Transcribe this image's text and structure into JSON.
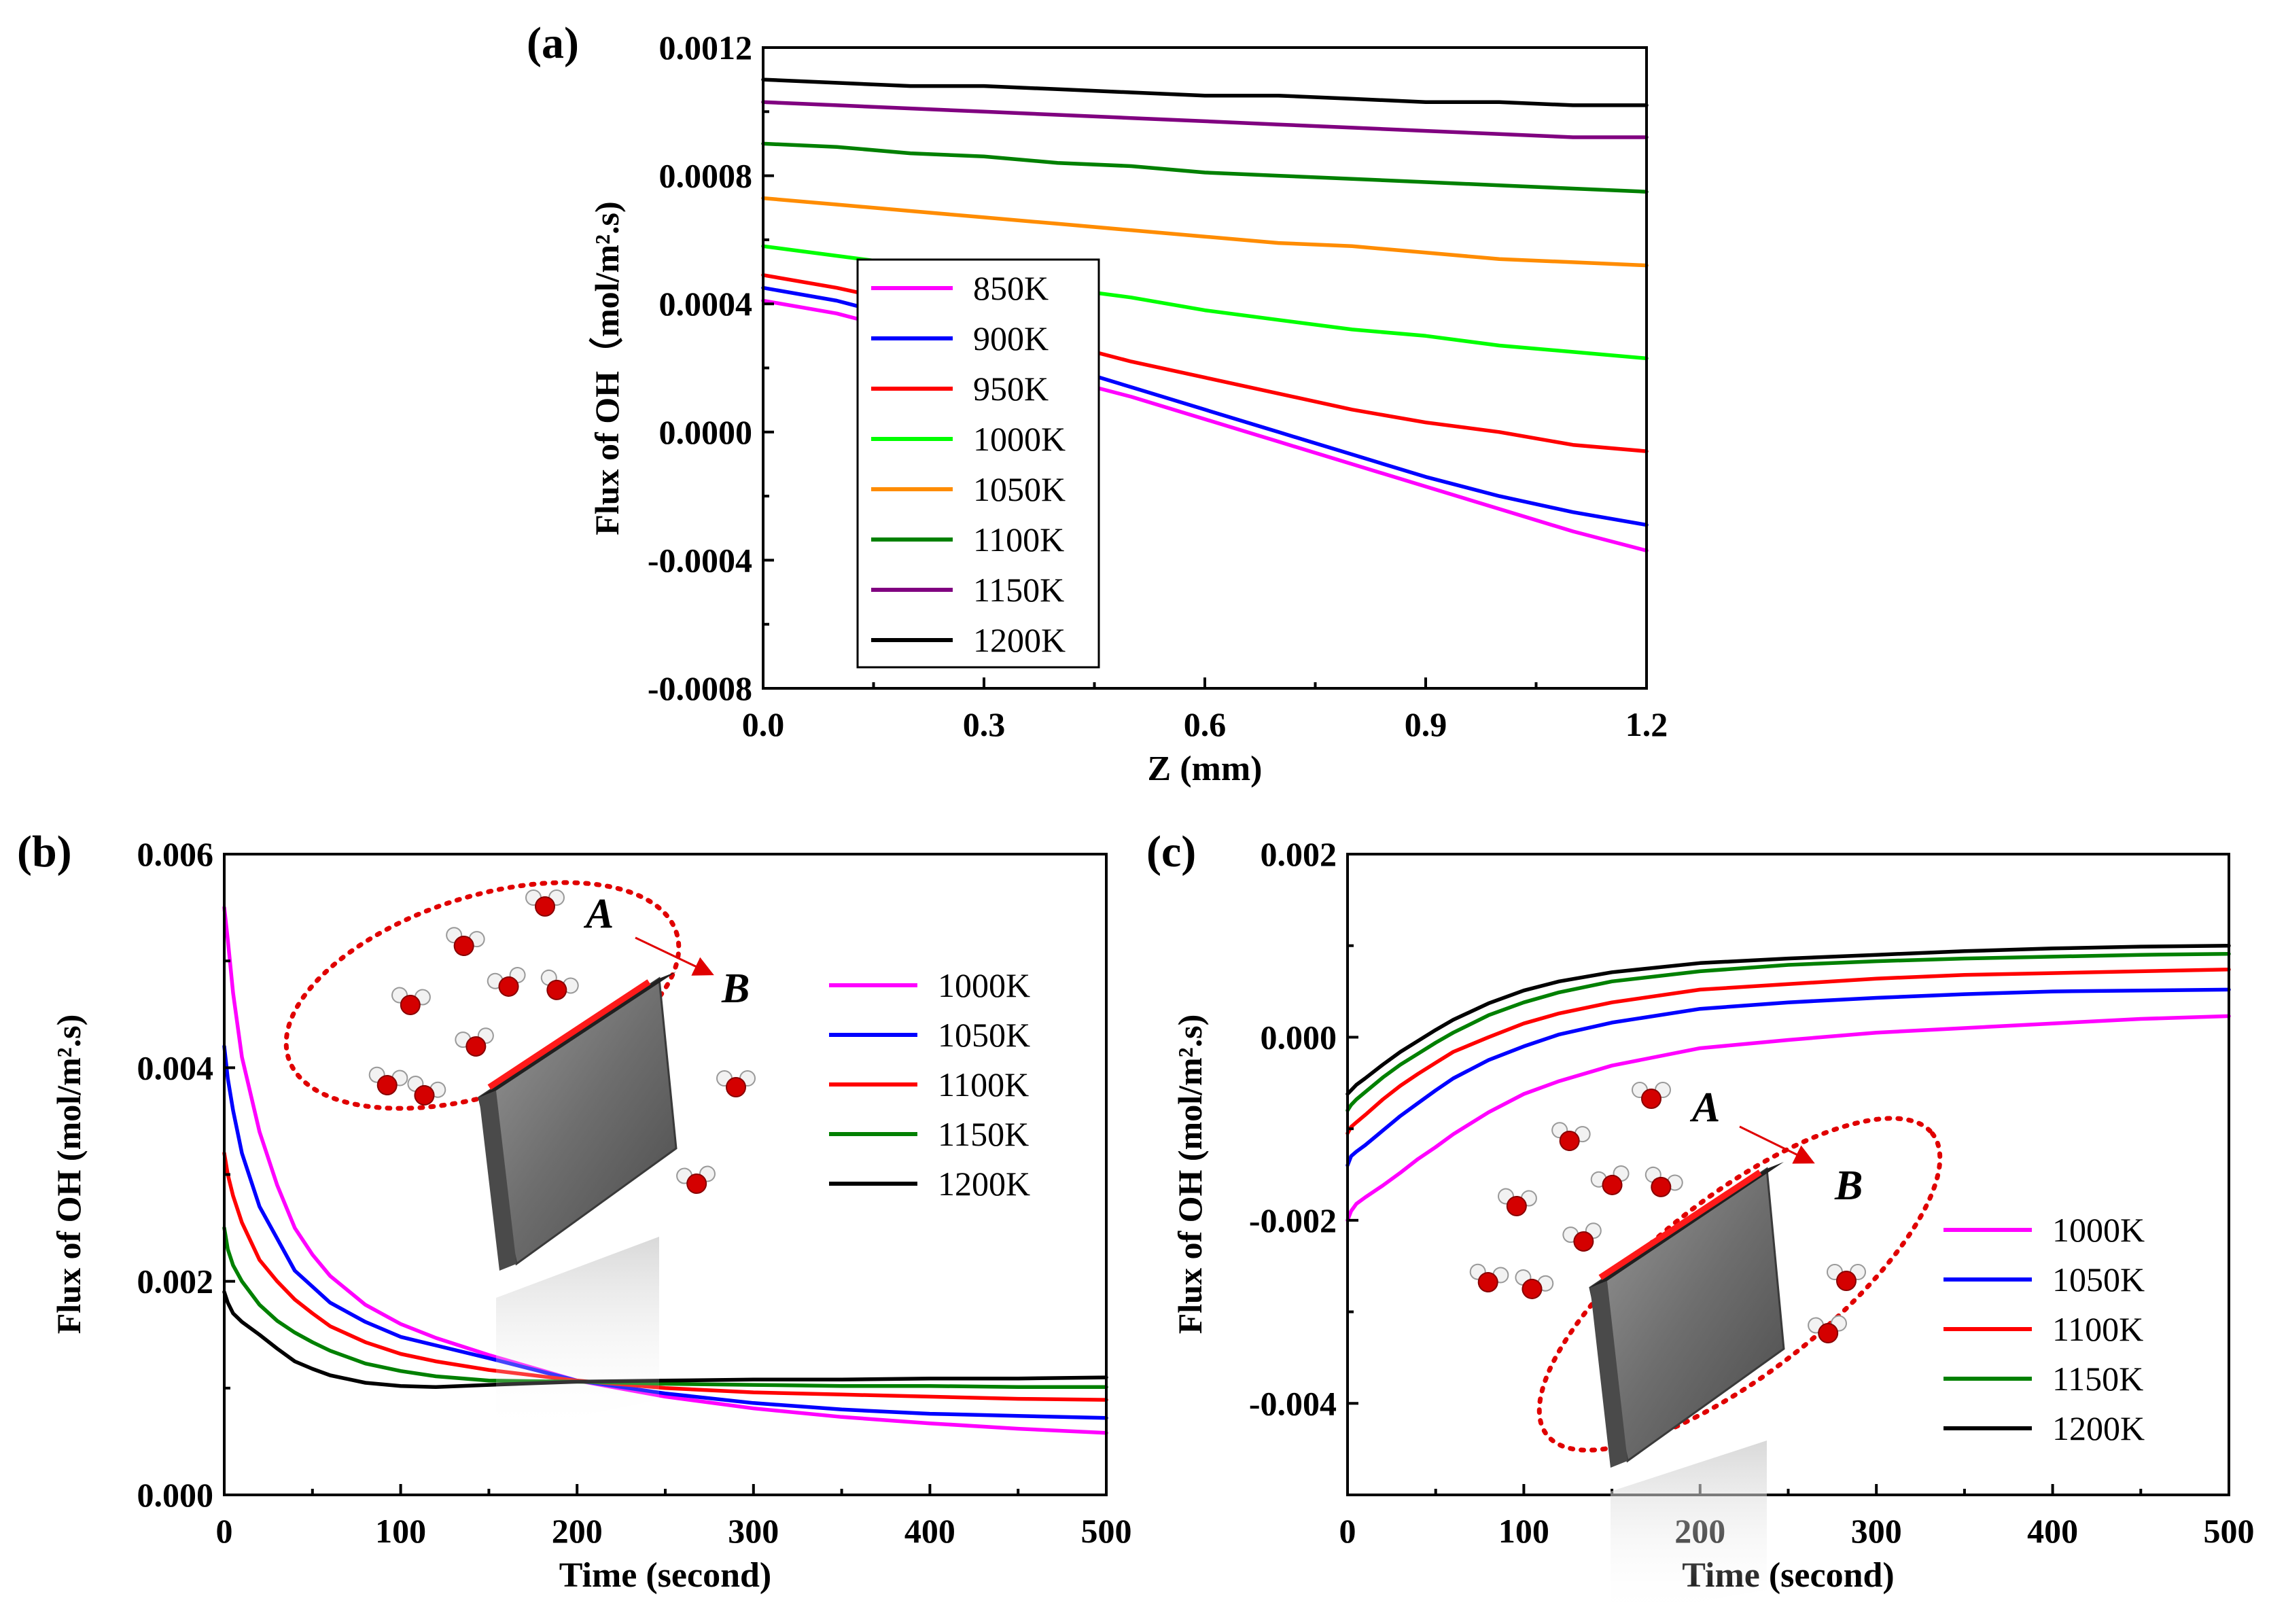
{
  "chart_data": [
    {
      "panel": "a",
      "type": "line",
      "panel_label": "(a)",
      "xlabel": "Z (mm)",
      "ylabel": "Flux of OH（mol/m².s)",
      "xlim": [
        0,
        1.2
      ],
      "ylim": [
        -0.0008,
        0.0012
      ],
      "x_ticks": [
        0,
        0.3,
        0.6,
        0.9,
        1.2
      ],
      "x_tick_labels": [
        "0.0",
        "0.3",
        "0.6",
        "0.9",
        "1.2"
      ],
      "y_ticks": [
        -0.0008,
        -0.0004,
        0,
        0.0004,
        0.0008,
        0.0012
      ],
      "y_tick_labels": [
        "-0.0008",
        "-0.0004",
        "0.0000",
        "0.0004",
        "0.0008",
        "0.0012"
      ],
      "x": [
        0,
        0.1,
        0.2,
        0.3,
        0.4,
        0.5,
        0.6,
        0.7,
        0.8,
        0.9,
        1.0,
        1.1,
        1.2
      ],
      "series": [
        {
          "name": "850K",
          "color": "#ff00ff",
          "values": [
            0.00041,
            0.00037,
            0.00031,
            0.00024,
            0.00017,
            0.00011,
            4e-05,
            -3e-05,
            -0.0001,
            -0.00017,
            -0.00024,
            -0.00031,
            -0.00037
          ]
        },
        {
          "name": "900K",
          "color": "#0000ff",
          "values": [
            0.00045,
            0.00041,
            0.00035,
            0.00028,
            0.00021,
            0.00014,
            7e-05,
            0.0,
            -7e-05,
            -0.00014,
            -0.0002,
            -0.00025,
            -0.00029
          ]
        },
        {
          "name": "950K",
          "color": "#ff0000",
          "values": [
            0.00049,
            0.00045,
            0.0004,
            0.00034,
            0.00028,
            0.00022,
            0.00017,
            0.00012,
            7e-05,
            3e-05,
            0.0,
            -4e-05,
            -6e-05
          ]
        },
        {
          "name": "1000K",
          "color": "#00ff00",
          "values": [
            0.00058,
            0.00055,
            0.00052,
            0.00048,
            0.00045,
            0.00042,
            0.00038,
            0.00035,
            0.00032,
            0.0003,
            0.00027,
            0.00025,
            0.00023
          ]
        },
        {
          "name": "1050K",
          "color": "#ff8c00",
          "values": [
            0.00073,
            0.00071,
            0.00069,
            0.00067,
            0.00065,
            0.00063,
            0.00061,
            0.00059,
            0.00058,
            0.00056,
            0.00054,
            0.00053,
            0.00052
          ]
        },
        {
          "name": "1100K",
          "color": "#008000",
          "values": [
            0.0009,
            0.00089,
            0.00087,
            0.00086,
            0.00084,
            0.00083,
            0.00081,
            0.0008,
            0.00079,
            0.00078,
            0.00077,
            0.00076,
            0.00075
          ]
        },
        {
          "name": "1150K",
          "color": "#800080",
          "values": [
            0.00103,
            0.00102,
            0.00101,
            0.001,
            0.00099,
            0.00098,
            0.00097,
            0.00096,
            0.00095,
            0.00094,
            0.00093,
            0.00092,
            0.00092
          ]
        },
        {
          "name": "1200K",
          "color": "#000000",
          "values": [
            0.0011,
            0.00109,
            0.00108,
            0.00108,
            0.00107,
            0.00106,
            0.00105,
            0.00105,
            0.00104,
            0.00103,
            0.00103,
            0.00102,
            0.00102
          ]
        }
      ]
    },
    {
      "panel": "b",
      "type": "line",
      "panel_label": "(b)",
      "xlabel": "Time (second)",
      "ylabel": "Flux of OH (mol/m².s)",
      "xlim": [
        0,
        500
      ],
      "ylim": [
        0,
        0.006
      ],
      "x_ticks": [
        0,
        100,
        200,
        300,
        400,
        500
      ],
      "x_tick_labels": [
        "0",
        "100",
        "200",
        "300",
        "400",
        "500"
      ],
      "y_ticks": [
        0,
        0.002,
        0.004,
        0.006
      ],
      "y_tick_labels": [
        "0.000",
        "0.002",
        "0.004",
        "0.006"
      ],
      "x": [
        0,
        2,
        5,
        10,
        20,
        30,
        40,
        50,
        60,
        80,
        100,
        120,
        150,
        200,
        250,
        300,
        350,
        400,
        450,
        500
      ],
      "series": [
        {
          "name": "1000K",
          "color": "#ff00ff",
          "values": [
            0.0055,
            0.0052,
            0.0047,
            0.0041,
            0.0034,
            0.0029,
            0.0025,
            0.00225,
            0.00205,
            0.00178,
            0.0016,
            0.00147,
            0.00131,
            0.00107,
            0.00092,
            0.00081,
            0.00073,
            0.00067,
            0.00062,
            0.00058
          ]
        },
        {
          "name": "1050K",
          "color": "#0000ff",
          "values": [
            0.0042,
            0.0039,
            0.0036,
            0.0032,
            0.0027,
            0.0024,
            0.0021,
            0.00195,
            0.0018,
            0.00162,
            0.00148,
            0.0014,
            0.00128,
            0.00107,
            0.00095,
            0.00086,
            0.0008,
            0.00076,
            0.00074,
            0.00072
          ]
        },
        {
          "name": "1100K",
          "color": "#ff0000",
          "values": [
            0.0032,
            0.003,
            0.0028,
            0.00255,
            0.0022,
            0.002,
            0.00183,
            0.0017,
            0.00158,
            0.00143,
            0.00132,
            0.00125,
            0.00117,
            0.00107,
            0.001,
            0.00096,
            0.00094,
            0.00092,
            0.0009,
            0.00089
          ]
        },
        {
          "name": "1150K",
          "color": "#008000",
          "values": [
            0.0025,
            0.0023,
            0.00215,
            0.002,
            0.00178,
            0.00163,
            0.00152,
            0.00143,
            0.00135,
            0.00123,
            0.00116,
            0.00111,
            0.00107,
            0.00106,
            0.00104,
            0.00103,
            0.00102,
            0.00102,
            0.00101,
            0.00101
          ]
        },
        {
          "name": "1200K",
          "color": "#000000",
          "values": [
            0.0019,
            0.0018,
            0.0017,
            0.00162,
            0.0015,
            0.00137,
            0.00125,
            0.00118,
            0.00112,
            0.00105,
            0.00102,
            0.00101,
            0.00103,
            0.00106,
            0.00107,
            0.00108,
            0.00108,
            0.00109,
            0.00109,
            0.0011
          ]
        }
      ],
      "annotation": {
        "start": "A",
        "end": "B"
      }
    },
    {
      "panel": "c",
      "type": "line",
      "panel_label": "(c)",
      "xlabel": "Time (second)",
      "ylabel": "Flux of OH (mol/m².s)",
      "xlim": [
        0,
        500
      ],
      "ylim": [
        -0.005,
        0.002
      ],
      "x_ticks": [
        0,
        100,
        200,
        300,
        400,
        500
      ],
      "x_tick_labels": [
        "0",
        "100",
        "200",
        "300",
        "400",
        "500"
      ],
      "y_ticks": [
        -0.004,
        -0.002,
        0,
        0.002
      ],
      "y_tick_labels": [
        "-0.004",
        "-0.002",
        "0.000",
        "0.002"
      ],
      "x": [
        0,
        2,
        5,
        10,
        20,
        30,
        40,
        50,
        60,
        80,
        100,
        120,
        150,
        200,
        250,
        300,
        350,
        400,
        450,
        500
      ],
      "series": [
        {
          "name": "1000K",
          "color": "#ff00ff",
          "values": [
            -0.002,
            -0.0019,
            -0.00182,
            -0.00175,
            -0.00162,
            -0.00148,
            -0.00133,
            -0.0012,
            -0.00106,
            -0.00082,
            -0.00062,
            -0.00048,
            -0.00031,
            -0.00012,
            -3e-05,
            5e-05,
            0.0001,
            0.00015,
            0.0002,
            0.00023
          ]
        },
        {
          "name": "1050K",
          "color": "#0000ff",
          "values": [
            -0.0014,
            -0.0013,
            -0.00125,
            -0.00118,
            -0.00102,
            -0.00086,
            -0.00072,
            -0.00058,
            -0.00045,
            -0.00025,
            -0.0001,
            3e-05,
            0.00016,
            0.00031,
            0.00038,
            0.00043,
            0.00047,
            0.0005,
            0.00051,
            0.00052
          ]
        },
        {
          "name": "1100K",
          "color": "#ff0000",
          "values": [
            -0.00105,
            -0.00098,
            -0.00093,
            -0.00085,
            -0.00068,
            -0.00053,
            -0.0004,
            -0.00028,
            -0.00016,
            0.0,
            0.00015,
            0.00026,
            0.00038,
            0.00052,
            0.00058,
            0.00064,
            0.00068,
            0.0007,
            0.00072,
            0.00074
          ]
        },
        {
          "name": "1150K",
          "color": "#008000",
          "values": [
            -0.0008,
            -0.00074,
            -0.00068,
            -0.0006,
            -0.00044,
            -0.0003,
            -0.00018,
            -6e-05,
            5e-05,
            0.00024,
            0.00038,
            0.00049,
            0.00061,
            0.00072,
            0.00079,
            0.00083,
            0.00086,
            0.00088,
            0.0009,
            0.00091
          ]
        },
        {
          "name": "1200K",
          "color": "#000000",
          "values": [
            -0.00062,
            -0.00058,
            -0.00052,
            -0.00045,
            -0.0003,
            -0.00016,
            -4e-05,
            8e-05,
            0.00019,
            0.00037,
            0.00051,
            0.00061,
            0.00071,
            0.00081,
            0.00086,
            0.0009,
            0.00094,
            0.00097,
            0.00099,
            0.001
          ]
        }
      ],
      "annotation": {
        "start": "A",
        "end": "B"
      }
    }
  ]
}
